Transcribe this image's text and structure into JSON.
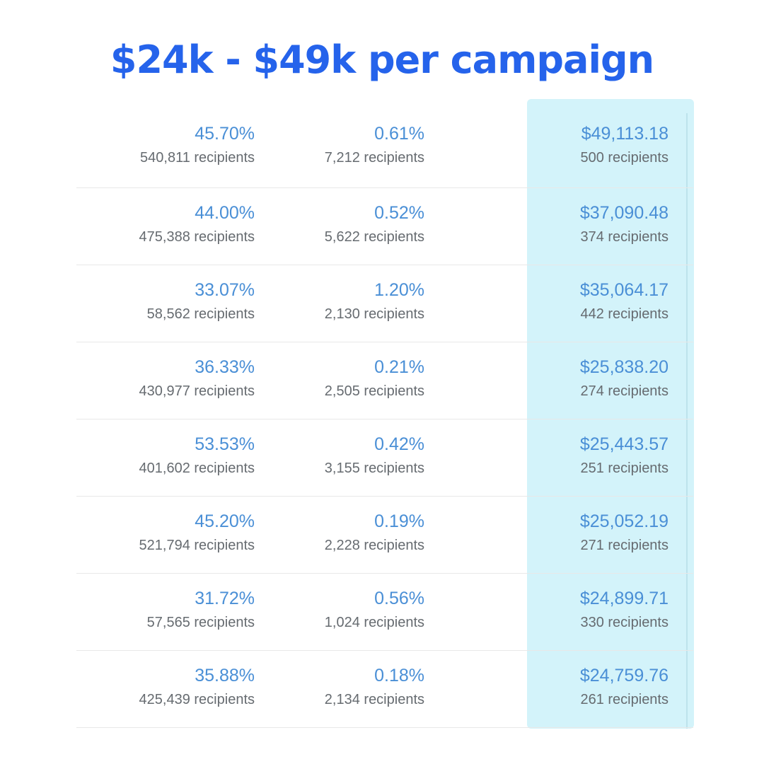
{
  "headline": "$24k - $49k per campaign",
  "colors": {
    "headline": "#2563eb",
    "value_text": "#4a8fd6",
    "sub_text": "#666b70",
    "highlight_column": "#d3f3fa"
  },
  "rows": [
    {
      "open_rate": "45.70%",
      "open_recipients": "540,811 recipients",
      "click_rate": "0.61%",
      "click_recipients": "7,212 recipients",
      "revenue": "$49,113.18",
      "revenue_recipients": "500 recipients"
    },
    {
      "open_rate": "44.00%",
      "open_recipients": "475,388 recipients",
      "click_rate": "0.52%",
      "click_recipients": "5,622 recipients",
      "revenue": "$37,090.48",
      "revenue_recipients": "374 recipients"
    },
    {
      "open_rate": "33.07%",
      "open_recipients": "58,562 recipients",
      "click_rate": "1.20%",
      "click_recipients": "2,130 recipients",
      "revenue": "$35,064.17",
      "revenue_recipients": "442 recipients"
    },
    {
      "open_rate": "36.33%",
      "open_recipients": "430,977 recipients",
      "click_rate": "0.21%",
      "click_recipients": "2,505 recipients",
      "revenue": "$25,838.20",
      "revenue_recipients": "274 recipients"
    },
    {
      "open_rate": "53.53%",
      "open_recipients": "401,602 recipients",
      "click_rate": "0.42%",
      "click_recipients": "3,155 recipients",
      "revenue": "$25,443.57",
      "revenue_recipients": "251 recipients"
    },
    {
      "open_rate": "45.20%",
      "open_recipients": "521,794 recipients",
      "click_rate": "0.19%",
      "click_recipients": "2,228 recipients",
      "revenue": "$25,052.19",
      "revenue_recipients": "271 recipients"
    },
    {
      "open_rate": "31.72%",
      "open_recipients": "57,565 recipients",
      "click_rate": "0.56%",
      "click_recipients": "1,024 recipients",
      "revenue": "$24,899.71",
      "revenue_recipients": "330 recipients"
    },
    {
      "open_rate": "35.88%",
      "open_recipients": "425,439 recipients",
      "click_rate": "0.18%",
      "click_recipients": "2,134 recipients",
      "revenue": "$24,759.76",
      "revenue_recipients": "261 recipients"
    }
  ]
}
